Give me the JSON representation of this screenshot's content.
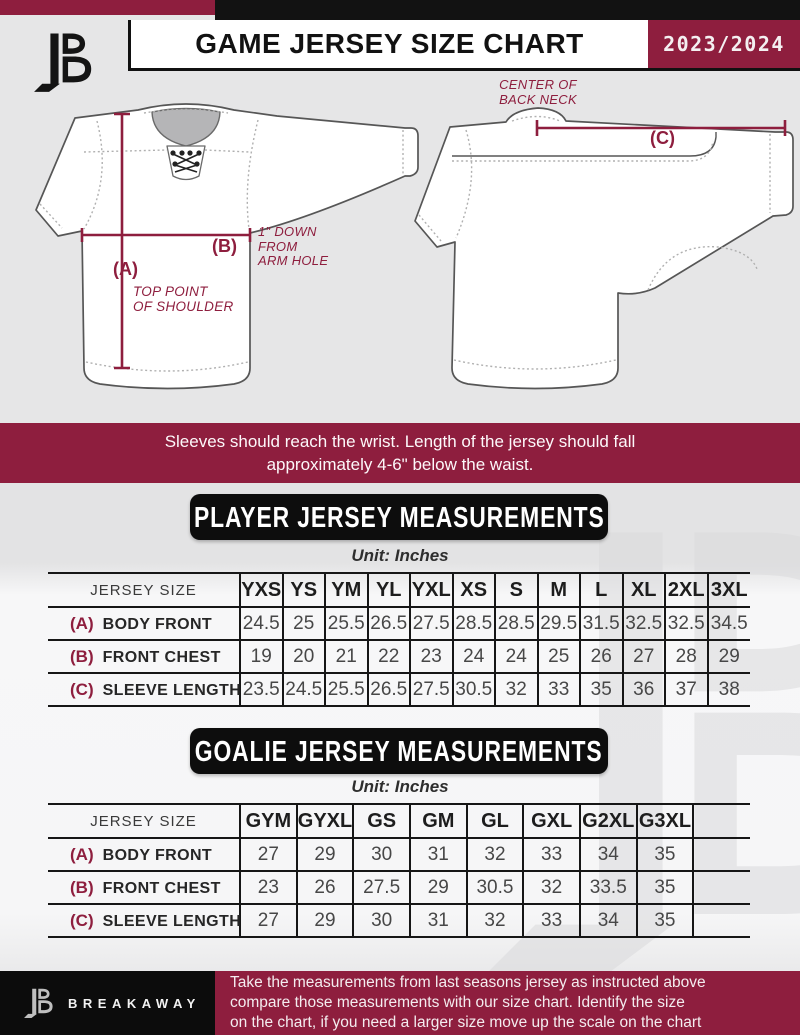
{
  "colors": {
    "maroon": "#8e1e3e",
    "black": "#121212",
    "page_gray": "#e6e6e7"
  },
  "header": {
    "title": "GAME JERSEY SIZE CHART",
    "season": "2023/2024"
  },
  "diagram": {
    "front": {
      "a_label": "(A)",
      "a_caption": "TOP POINT\nOF SHOULDER",
      "b_label": "(B)",
      "b_caption": "1\" DOWN\nFROM\nARM HOLE"
    },
    "back": {
      "c_label": "(C)",
      "c_caption": "CENTER OF\nBACK NECK"
    }
  },
  "banner": {
    "text": "Sleeves should reach the wrist. Length of the jersey should fall\napproximately 4-6\" below the waist."
  },
  "player_section": {
    "title": "PLAYER JERSEY MEASUREMENTS",
    "unit": "Unit: Inches",
    "table": {
      "corner_label": "JERSEY SIZE",
      "columns": [
        "YXS",
        "YS",
        "YM",
        "YL",
        "YXL",
        "XS",
        "S",
        "M",
        "L",
        "XL",
        "2XL",
        "3XL"
      ],
      "rows": [
        {
          "key": "(A)",
          "label": "BODY FRONT",
          "values": [
            "24.5",
            "25",
            "25.5",
            "26.5",
            "27.5",
            "28.5",
            "28.5",
            "29.5",
            "31.5",
            "32.5",
            "32.5",
            "34.5"
          ]
        },
        {
          "key": "(B)",
          "label": "FRONT CHEST",
          "values": [
            "19",
            "20",
            "21",
            "22",
            "23",
            "24",
            "24",
            "25",
            "26",
            "27",
            "28",
            "29"
          ]
        },
        {
          "key": "(C)",
          "label": "SLEEVE LENGTH",
          "values": [
            "23.5",
            "24.5",
            "25.5",
            "26.5",
            "27.5",
            "30.5",
            "32",
            "33",
            "35",
            "36",
            "37",
            "38"
          ]
        }
      ]
    }
  },
  "goalie_section": {
    "title": "GOALIE JERSEY MEASUREMENTS",
    "unit": "Unit: Inches",
    "table": {
      "corner_label": "JERSEY SIZE",
      "columns": [
        "GYM",
        "GYXL",
        "GS",
        "GM",
        "GL",
        "GXL",
        "G2XL",
        "G3XL",
        ""
      ],
      "rows": [
        {
          "key": "(A)",
          "label": "BODY FRONT",
          "values": [
            "27",
            "29",
            "30",
            "31",
            "32",
            "33",
            "34",
            "35",
            ""
          ]
        },
        {
          "key": "(B)",
          "label": "FRONT CHEST",
          "values": [
            "23",
            "26",
            "27.5",
            "29",
            "30.5",
            "32",
            "33.5",
            "35",
            ""
          ]
        },
        {
          "key": "(C)",
          "label": "SLEEVE LENGTH",
          "values": [
            "27",
            "29",
            "30",
            "31",
            "32",
            "33",
            "34",
            "35",
            ""
          ]
        }
      ]
    }
  },
  "footer": {
    "brand": "BREAKAWAY",
    "note": "Take the measurements from last seasons jersey as instructed above\ncompare those measurements  with our size chart. Identify the size\non the chart, if you need a larger size move up the scale on the chart"
  }
}
